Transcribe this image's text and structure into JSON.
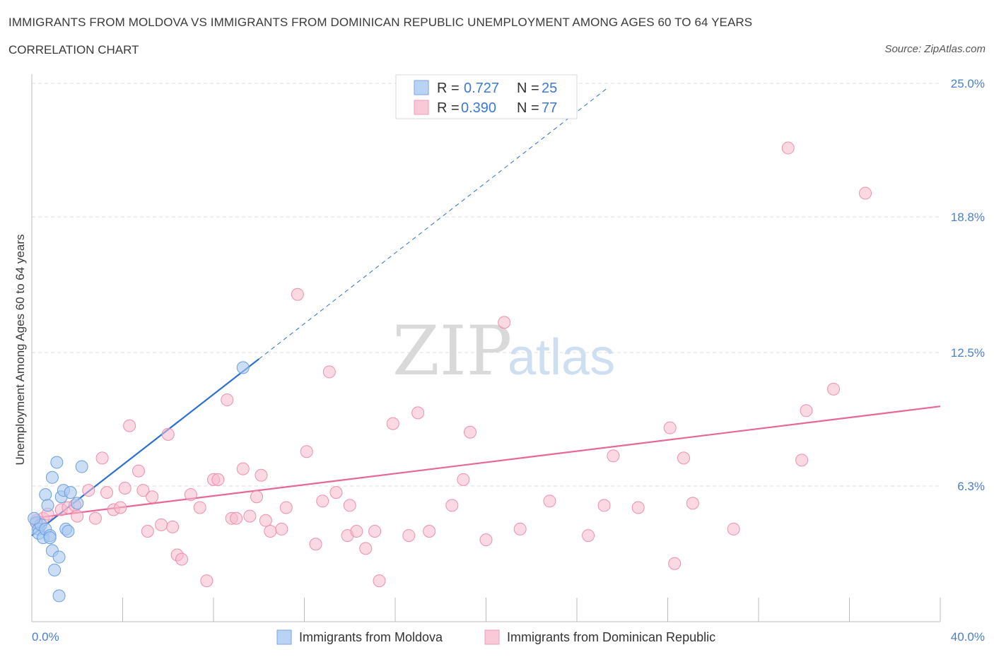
{
  "title": "IMMIGRANTS FROM MOLDOVA VS IMMIGRANTS FROM DOMINICAN REPUBLIC UNEMPLOYMENT AMONG AGES 60 TO 64 YEARS",
  "subtitle": "CORRELATION CHART",
  "source": "Source: ZipAtlas.com",
  "watermark": {
    "zip": "ZIP",
    "atlas": "atlas"
  },
  "colors": {
    "blue_fill": "#a9c8f0",
    "blue_stroke": "#6a9ee0",
    "blue_line": "#2a6fd1",
    "pink_fill": "#f7b9cc",
    "pink_stroke": "#ec8fae",
    "pink_line": "#e76795",
    "grid": "#dddddd",
    "tick_text": "#4a7fcf"
  },
  "legend": {
    "r_label": "R =",
    "n_label": "N =",
    "rows": [
      {
        "series": "Immigrants from Moldova",
        "r": "0.727",
        "n": "25"
      },
      {
        "series": "Immigrants from Dominican Republic",
        "r": "0.390",
        "n": "77"
      }
    ]
  },
  "chart_data": {
    "type": "scatter",
    "xlabel": "",
    "ylabel": "Unemployment Among Ages 60 to 64 years",
    "xlim": [
      0,
      40
    ],
    "ylim": [
      0,
      25
    ],
    "x_tick_labels": [
      "0.0%",
      "40.0%"
    ],
    "y_ticks": [
      6.3,
      12.5,
      18.8,
      25.0
    ],
    "y_tick_labels": [
      "6.3%",
      "12.5%",
      "18.8%",
      "25.0%"
    ],
    "series": [
      {
        "name": "Immigrants from Moldova",
        "color": "blue",
        "trend": {
          "x0": 0.0,
          "y0": 4.0,
          "x1": 10.0,
          "y1": 12.2,
          "dashed_to_x": 25.3
        },
        "points": [
          [
            0.2,
            4.6
          ],
          [
            0.3,
            4.3
          ],
          [
            0.3,
            4.1
          ],
          [
            0.4,
            4.5
          ],
          [
            0.5,
            3.9
          ],
          [
            0.6,
            5.9
          ],
          [
            0.6,
            4.3
          ],
          [
            0.7,
            5.4
          ],
          [
            0.8,
            4.0
          ],
          [
            0.8,
            3.9
          ],
          [
            0.9,
            3.3
          ],
          [
            0.9,
            6.7
          ],
          [
            1.0,
            2.4
          ],
          [
            1.1,
            7.4
          ],
          [
            1.2,
            1.2
          ],
          [
            1.2,
            3.0
          ],
          [
            1.3,
            5.8
          ],
          [
            1.4,
            6.1
          ],
          [
            1.5,
            4.3
          ],
          [
            1.6,
            4.2
          ],
          [
            1.7,
            6.0
          ],
          [
            2.0,
            5.5
          ],
          [
            2.2,
            7.2
          ],
          [
            9.3,
            11.8
          ],
          [
            0.1,
            4.8
          ]
        ]
      },
      {
        "name": "Immigrants from Dominican Republic",
        "color": "pink",
        "trend": {
          "x0": 0.0,
          "y0": 4.8,
          "x1": 40.0,
          "y1": 10.0
        },
        "points": [
          [
            0.2,
            4.7
          ],
          [
            0.5,
            4.8
          ],
          [
            0.7,
            5.0
          ],
          [
            1.3,
            5.2
          ],
          [
            1.6,
            5.3
          ],
          [
            1.9,
            5.4
          ],
          [
            2.0,
            4.9
          ],
          [
            2.5,
            6.1
          ],
          [
            2.8,
            4.8
          ],
          [
            3.1,
            7.6
          ],
          [
            3.3,
            6.0
          ],
          [
            3.6,
            5.2
          ],
          [
            3.9,
            5.3
          ],
          [
            4.1,
            6.2
          ],
          [
            4.3,
            9.1
          ],
          [
            4.7,
            7.0
          ],
          [
            4.9,
            6.1
          ],
          [
            5.1,
            4.2
          ],
          [
            5.3,
            5.8
          ],
          [
            5.7,
            4.5
          ],
          [
            6.0,
            8.7
          ],
          [
            6.2,
            4.4
          ],
          [
            6.4,
            3.1
          ],
          [
            6.6,
            2.9
          ],
          [
            7.0,
            5.9
          ],
          [
            7.4,
            5.3
          ],
          [
            7.7,
            1.9
          ],
          [
            8.0,
            6.6
          ],
          [
            8.2,
            6.6
          ],
          [
            8.6,
            10.3
          ],
          [
            8.8,
            4.8
          ],
          [
            9.0,
            4.8
          ],
          [
            9.3,
            7.1
          ],
          [
            9.6,
            4.9
          ],
          [
            9.9,
            5.8
          ],
          [
            10.1,
            6.8
          ],
          [
            10.3,
            4.7
          ],
          [
            10.5,
            4.2
          ],
          [
            11.0,
            4.3
          ],
          [
            11.2,
            5.3
          ],
          [
            11.7,
            15.2
          ],
          [
            12.1,
            7.9
          ],
          [
            12.5,
            3.6
          ],
          [
            12.8,
            5.6
          ],
          [
            13.1,
            11.6
          ],
          [
            13.4,
            6.0
          ],
          [
            13.9,
            4.0
          ],
          [
            14.3,
            4.2
          ],
          [
            14.7,
            3.4
          ],
          [
            15.1,
            4.2
          ],
          [
            15.3,
            1.9
          ],
          [
            15.9,
            9.2
          ],
          [
            16.6,
            4.0
          ],
          [
            17.5,
            4.2
          ],
          [
            18.5,
            5.4
          ],
          [
            19.0,
            6.6
          ],
          [
            19.3,
            8.8
          ],
          [
            20.0,
            3.8
          ],
          [
            20.8,
            13.9
          ],
          [
            21.5,
            4.3
          ],
          [
            22.8,
            5.6
          ],
          [
            24.5,
            4.0
          ],
          [
            25.2,
            5.4
          ],
          [
            25.6,
            7.7
          ],
          [
            26.7,
            5.3
          ],
          [
            28.1,
            9.0
          ],
          [
            28.3,
            2.7
          ],
          [
            28.7,
            7.6
          ],
          [
            29.1,
            5.5
          ],
          [
            30.9,
            4.3
          ],
          [
            33.3,
            22.0
          ],
          [
            34.1,
            9.8
          ],
          [
            33.9,
            7.5
          ],
          [
            35.3,
            10.8
          ],
          [
            36.7,
            19.9
          ],
          [
            14.0,
            5.4
          ],
          [
            17.0,
            9.7
          ]
        ]
      }
    ]
  }
}
